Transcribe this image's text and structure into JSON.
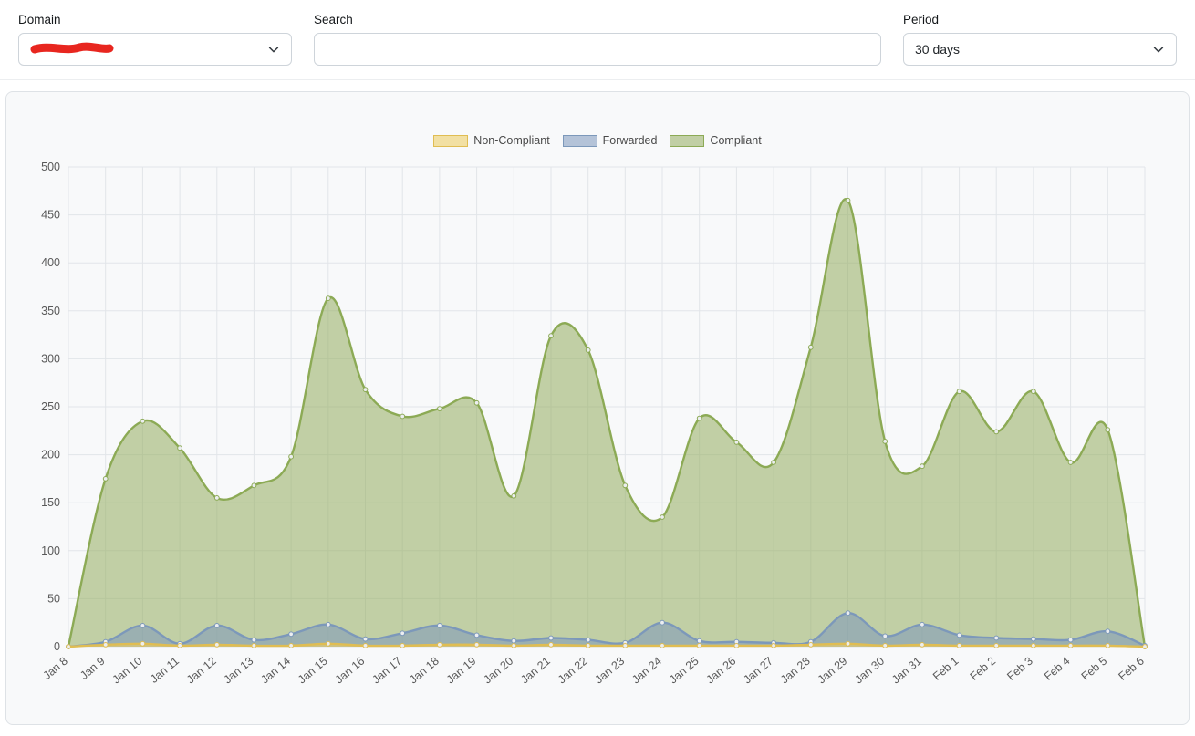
{
  "topbar": {
    "domain": {
      "label": "Domain",
      "value_redacted": true,
      "redaction_color": "#e8261f"
    },
    "search": {
      "label": "Search",
      "value": "",
      "placeholder": ""
    },
    "period": {
      "label": "Period",
      "value": "30 days"
    }
  },
  "chart_data": {
    "type": "area",
    "title": "",
    "xlabel": "",
    "ylabel": "",
    "ylim": [
      0,
      500
    ],
    "ytick_step": 50,
    "grid": true,
    "legend_position": "top",
    "x": [
      "Jan 8",
      "Jan 9",
      "Jan 10",
      "Jan 11",
      "Jan 12",
      "Jan 13",
      "Jan 14",
      "Jan 15",
      "Jan 16",
      "Jan 17",
      "Jan 18",
      "Jan 19",
      "Jan 20",
      "Jan 21",
      "Jan 22",
      "Jan 23",
      "Jan 24",
      "Jan 25",
      "Jan 26",
      "Jan 27",
      "Jan 28",
      "Jan 29",
      "Jan 30",
      "Jan 31",
      "Feb 1",
      "Feb 2",
      "Feb 3",
      "Feb 4",
      "Feb 5",
      "Feb 6"
    ],
    "series": [
      {
        "name": "Non-Compliant",
        "color": "#e0bd52",
        "fill": "rgba(238,207,105,0.6)",
        "values": [
          0,
          2,
          3,
          1,
          2,
          1,
          1,
          3,
          1,
          1,
          2,
          2,
          1,
          2,
          1,
          1,
          1,
          1,
          1,
          1,
          2,
          3,
          1,
          2,
          1,
          1,
          1,
          1,
          1,
          0
        ]
      },
      {
        "name": "Forwarded",
        "color": "#7c98ba",
        "fill": "rgba(124,152,188,0.55)",
        "values": [
          0,
          5,
          22,
          3,
          22,
          7,
          13,
          23,
          8,
          14,
          22,
          12,
          6,
          9,
          7,
          4,
          25,
          6,
          5,
          4,
          5,
          35,
          11,
          23,
          12,
          9,
          8,
          7,
          16,
          1
        ]
      },
      {
        "name": "Compliant",
        "color": "#8caa55",
        "fill": "rgba(148,173,94,0.55)",
        "values": [
          0,
          175,
          235,
          207,
          155,
          168,
          198,
          363,
          268,
          240,
          248,
          254,
          157,
          324,
          309,
          168,
          135,
          238,
          213,
          192,
          312,
          465,
          214,
          188,
          266,
          224,
          266,
          192,
          226,
          0
        ]
      }
    ]
  }
}
